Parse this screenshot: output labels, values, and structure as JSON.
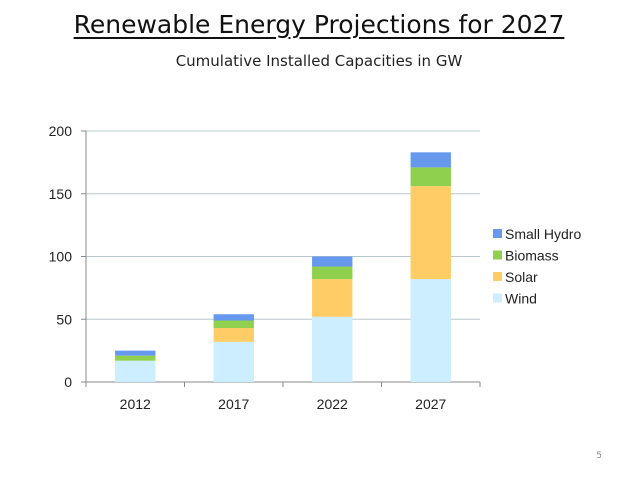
{
  "slide": {
    "title": "Renewable Energy Projections for 2027",
    "subtitle": "Cumulative Installed Capacities in GW",
    "page_number": "5"
  },
  "chart_data": {
    "type": "bar",
    "stacked": true,
    "title": "Renewable Energy Projections for 2027",
    "subtitle": "Cumulative Installed Capacities in GW",
    "xlabel": "",
    "ylabel": "",
    "categories": [
      "2012",
      "2017",
      "2022",
      "2027"
    ],
    "ylim": [
      0,
      200
    ],
    "yticks": [
      0,
      50,
      100,
      150,
      200
    ],
    "grid": true,
    "legend_position": "right",
    "series": [
      {
        "name": "Wind",
        "color": "#cceeff",
        "values": [
          17,
          32,
          52,
          82
        ]
      },
      {
        "name": "Solar",
        "color": "#ffcc66",
        "values": [
          0,
          11,
          30,
          74
        ]
      },
      {
        "name": "Biomass",
        "color": "#8fd14f",
        "values": [
          4,
          6,
          10,
          15
        ]
      },
      {
        "name": "Small Hydro",
        "color": "#6699ee",
        "values": [
          4,
          5,
          8,
          12
        ]
      }
    ]
  }
}
